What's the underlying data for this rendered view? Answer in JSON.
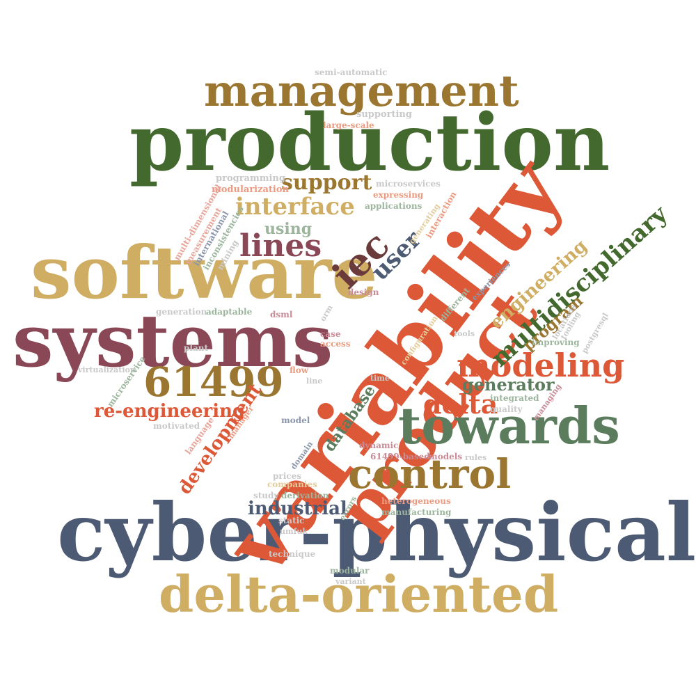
{
  "colors": {
    "green": "#44692f",
    "gold": "#9b7631",
    "tan": "#cfad63",
    "plum": "#8a4756",
    "slate": "#4d5a73",
    "orange": "#dc5837",
    "sage": "#5b7d5d",
    "brown": "#6b3a3a",
    "pink": "#e8a59a",
    "lightgray": "#c9c9c9",
    "lightgreen": "#9cb59c",
    "lightslate": "#8b96aa",
    "lightplum": "#c98b97",
    "lighttan": "#e3cd9c",
    "lightorange": "#ec9a80"
  },
  "words": [
    {
      "text": "production",
      "color_key": "green"
    },
    {
      "text": "management",
      "color_key": "gold"
    },
    {
      "text": "software",
      "color_key": "tan"
    },
    {
      "text": "systems",
      "color_key": "plum"
    },
    {
      "text": "cyber-physical",
      "color_key": "slate"
    },
    {
      "text": "delta-oriented",
      "color_key": "tan"
    },
    {
      "text": "variability",
      "color_key": "orange"
    },
    {
      "text": "product",
      "color_key": "orange"
    },
    {
      "text": "towards",
      "color_key": "sage"
    },
    {
      "text": "control",
      "color_key": "gold"
    },
    {
      "text": "61499",
      "color_key": "gold"
    },
    {
      "text": "lines",
      "color_key": "plum"
    },
    {
      "text": "iec",
      "color_key": "brown"
    },
    {
      "text": "interface",
      "color_key": "tan"
    },
    {
      "text": "support",
      "color_key": "gold"
    },
    {
      "text": "modeling",
      "color_key": "orange"
    },
    {
      "text": "multidisciplinary",
      "color_key": "green"
    },
    {
      "text": "delta",
      "color_key": "orange"
    },
    {
      "text": "user",
      "color_key": "slate"
    },
    {
      "text": "engineering",
      "color_key": "tan"
    },
    {
      "text": "program",
      "color_key": "gold"
    },
    {
      "text": "generator",
      "color_key": "sage"
    },
    {
      "text": "re-engineering",
      "color_key": "orange"
    },
    {
      "text": "development",
      "color_key": "orange"
    },
    {
      "text": "industrial",
      "color_key": "slate"
    },
    {
      "text": "database",
      "color_key": "sage"
    },
    {
      "text": "using",
      "color_key": "lightgreen"
    },
    {
      "text": "semi-automatic",
      "color_key": "lightgray"
    },
    {
      "text": "supporting",
      "color_key": "lightgray"
    },
    {
      "text": "large-scale",
      "color_key": "lightorange"
    },
    {
      "text": "programming",
      "color_key": "lightgray"
    },
    {
      "text": "modularization",
      "color_key": "lightorange"
    },
    {
      "text": "microservices",
      "color_key": "lightgray"
    },
    {
      "text": "expressing",
      "color_key": "lightorange"
    },
    {
      "text": "applications",
      "color_key": "lightgreen"
    },
    {
      "text": "generating",
      "color_key": "lighttan"
    },
    {
      "text": "interaction",
      "color_key": "lightorange"
    },
    {
      "text": "multi-dimensional",
      "color_key": "pink"
    },
    {
      "text": "measurement",
      "color_key": "pink"
    },
    {
      "text": "international",
      "color_key": "lightslate"
    },
    {
      "text": "inconsistencies",
      "color_key": "lightgreen"
    },
    {
      "text": "mining",
      "color_key": "lightgray"
    },
    {
      "text": "design",
      "color_key": "lightplum"
    },
    {
      "text": "experiences",
      "color_key": "lightslate"
    },
    {
      "text": "different",
      "color_key": "lightgreen"
    },
    {
      "text": "generation",
      "color_key": "lightgray"
    },
    {
      "text": "adaptable",
      "color_key": "lightgreen"
    },
    {
      "text": "dsml",
      "color_key": "lightplum"
    },
    {
      "text": "orm",
      "color_key": "lightgray"
    },
    {
      "text": "plant",
      "color_key": "lightgray"
    },
    {
      "text": "case",
      "color_key": "lightplum"
    },
    {
      "text": "access",
      "color_key": "lightorange"
    },
    {
      "text": "configuration",
      "color_key": "lighttan"
    },
    {
      "text": "tools",
      "color_key": "lightgray"
    },
    {
      "text": "locations",
      "color_key": "lightgray"
    },
    {
      "text": "tooling",
      "color_key": "lightgray"
    },
    {
      "text": "postgresql",
      "color_key": "lightgray"
    },
    {
      "text": "improving",
      "color_key": "lightgreen"
    },
    {
      "text": "virtualization",
      "color_key": "lightgray"
    },
    {
      "text": "microservice",
      "color_key": "lightgreen"
    },
    {
      "text": "flow",
      "color_key": "lightorange"
    },
    {
      "text": "line",
      "color_key": "lightgray"
    },
    {
      "text": "time",
      "color_key": "lightgray"
    },
    {
      "text": "integrated",
      "color_key": "lightgreen"
    },
    {
      "text": "managing",
      "color_key": "lightplum"
    },
    {
      "text": "quality",
      "color_key": "lightgray"
    },
    {
      "text": "motivated",
      "color_key": "lightgray"
    },
    {
      "text": "model",
      "color_key": "lightslate"
    },
    {
      "text": "language",
      "color_key": "pink"
    },
    {
      "text": "manager",
      "color_key": "lightorange"
    },
    {
      "text": "dynamic",
      "color_key": "lightplum"
    },
    {
      "text": "domain",
      "color_key": "lightslate"
    },
    {
      "text": "61499-based",
      "color_key": "lightplum"
    },
    {
      "text": "models",
      "color_key": "lightplum"
    },
    {
      "text": "rules",
      "color_key": "lightgray"
    },
    {
      "text": "prices",
      "color_key": "lightgray"
    },
    {
      "text": "companies",
      "color_key": "lighttan"
    },
    {
      "text": "study",
      "color_key": "lightgray"
    },
    {
      "text": "derivation",
      "color_key": "lightgreen"
    },
    {
      "text": "errors",
      "color_key": "lightgreen"
    },
    {
      "text": "heterogeneous",
      "color_key": "lightorange"
    },
    {
      "text": "manufacturing",
      "color_key": "lightgreen"
    },
    {
      "text": "static",
      "color_key": "lightgray"
    },
    {
      "text": "umfuk",
      "color_key": "lightgray"
    },
    {
      "text": "technique",
      "color_key": "lightgray"
    },
    {
      "text": "modular",
      "color_key": "lightgreen"
    },
    {
      "text": "variant",
      "color_key": "lightgray"
    }
  ]
}
